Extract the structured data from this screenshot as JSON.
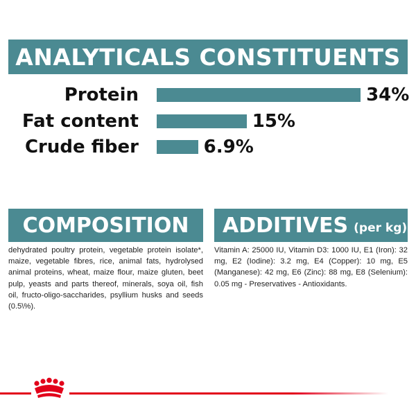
{
  "analyticals": {
    "title": "ANALYTICALS CONSTITUENTS",
    "items": [
      {
        "label": "Protein",
        "value": "34%",
        "percent": 34
      },
      {
        "label": "Fat content",
        "value": "15%",
        "percent": 15
      },
      {
        "label": "Crude fiber",
        "value": "6.9%",
        "percent": 6.9
      }
    ]
  },
  "composition": {
    "title": "COMPOSITION",
    "text": "dehydrated poultry protein, vegetable protein isolate*, maize, vegetable fibres, rice, animal fats, hydrolysed animal proteins, wheat, maize flour, maize gluten, beet pulp, yeasts and parts thereof, minerals, soya oil, fish oil, fructo-oligo-saccharides, psyllium husks and seeds (0.5\\%)."
  },
  "additives": {
    "title": "ADDITIVES",
    "unit": "(per kg)",
    "text": "Vitamin A: 25000 IU, Vitamin D3: 1000 IU, E1 (Iron): 32 mg, E2 (Iodine): 3.2 mg, E4 (Copper): 10 mg, E5 (Manganese): 42 mg, E6 (Zinc): 88 mg, E8 (Selenium): 0.05 mg - Preservatives - Antioxidants."
  },
  "colors": {
    "accent": "#4b8a92",
    "brand_red": "#e2001a"
  },
  "footer": {
    "logo_icon": "royal-canin-crown-icon"
  }
}
